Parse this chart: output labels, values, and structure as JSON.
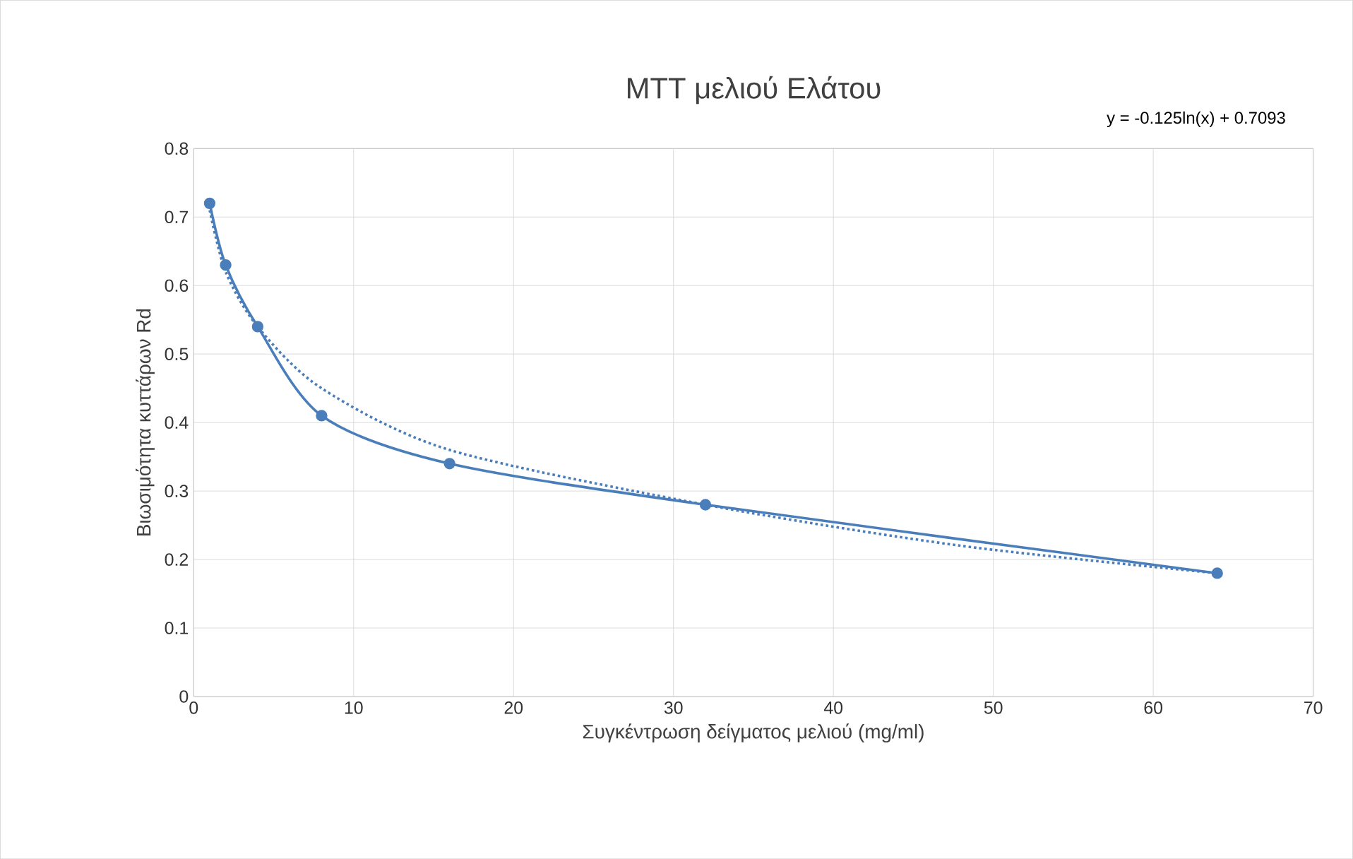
{
  "chart_data": {
    "type": "line",
    "title": "MTT μελιού Ελάτου",
    "xlabel": "Συγκέντρωση δείγματος μελιού (mg/ml)",
    "ylabel": "Βιωσιμότητα κυττάρων Rd",
    "annotations": [
      "y = -0.125ln(x) + 0.7093"
    ],
    "x": [
      1,
      2,
      4,
      8,
      16,
      32,
      64
    ],
    "series": [
      {
        "color": "#4a7ebb",
        "values": [
          0.72,
          0.63,
          0.54,
          0.41,
          0.34,
          0.28,
          0.18
        ]
      },
      {
        "type": "line",
        "color": "#4a7ebb",
        "x": [
          1,
          2,
          4,
          8,
          16,
          32,
          48,
          64
        ],
        "values": [
          0.71,
          0.62,
          0.54,
          0.45,
          0.36,
          0.28,
          0.22,
          0.18
        ],
        "marker": "none",
        "line_style": "dotted"
      }
    ],
    "xlim": [
      0,
      70
    ],
    "xticks": [
      0,
      10,
      20,
      30,
      40,
      50,
      60,
      70
    ],
    "ylim": [
      0,
      0.8
    ],
    "yticks": [
      0,
      0.1,
      0.2,
      0.3,
      0.4,
      0.5,
      0.6,
      0.7,
      0.8
    ],
    "grid": true,
    "marker": "circle",
    "line_style": "solid"
  }
}
